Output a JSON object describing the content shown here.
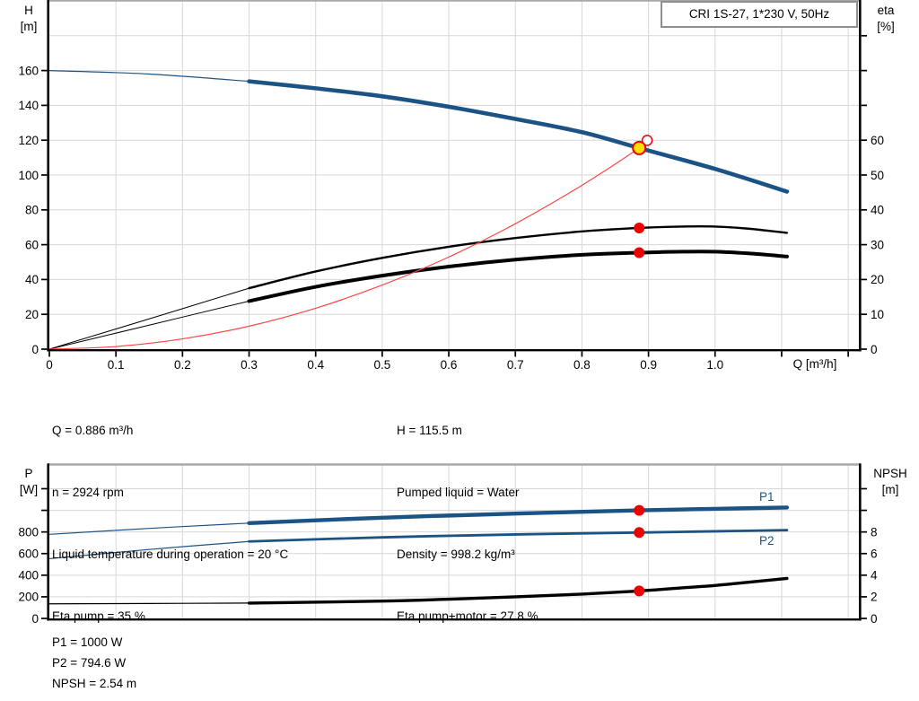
{
  "info": {
    "left": [
      "Q = 0.886 m³/h",
      "n = 2924 rpm",
      "Liquid temperature during operation = 20 °C",
      "Eta pump = 35 %"
    ],
    "right": [
      "H = 115.5 m",
      "Pumped liquid = Water",
      "Density = 998.2 kg/m³",
      "Eta pump+motor = 27.8 %"
    ]
  },
  "footer": [
    "P1 = 1000 W",
    "P2 = 794.6 W",
    "NPSH = 2.54 m"
  ],
  "operating_point": {
    "Q": 0.886,
    "H": 115.5,
    "eta_pump": 35,
    "eta_pump_motor": 27.8,
    "P1": 1000,
    "P2": 794.6,
    "NPSH": 2.54
  },
  "colors": {
    "curve_blue": "#1c5385",
    "curve_black": "#000000",
    "duty_red": "#ff4646",
    "dot_red": "#ee0000",
    "dot_yellow": "#ffe100",
    "grid": "#d7d7d7",
    "top_border": "#a8a8a8",
    "axis": "#000000"
  },
  "chart_data": [
    {
      "id": "qh-eta",
      "type": "line",
      "title_box": "CRI 1S-27, 1*230 V, 50Hz",
      "x_axis": {
        "label": "Q [m³/h]",
        "min": 0,
        "max": 1.216,
        "ticks": [
          0,
          0.1,
          0.2,
          0.3,
          0.4,
          0.5,
          0.6,
          0.7,
          0.8,
          0.9,
          1.0
        ],
        "tick_labels": [
          "0",
          "0.1",
          "0.2",
          "0.3",
          "0.4",
          "0.5",
          "0.6",
          "0.7",
          "0.8",
          "0.9",
          "1.0"
        ],
        "unlabeled_ticks": [
          1.1,
          1.2
        ],
        "grid": [
          0.1,
          0.2,
          0.3,
          0.4,
          0.5,
          0.6,
          0.7,
          0.8,
          0.9,
          1.0,
          1.1,
          1.2
        ]
      },
      "left_axis": {
        "label_line1": "H",
        "label_line2": "[m]",
        "min": 0,
        "max": 200,
        "ticks": [
          0,
          20,
          40,
          60,
          80,
          100,
          120,
          140,
          160
        ],
        "tick_labels": [
          "0",
          "20",
          "40",
          "60",
          "80",
          "100",
          "120",
          "140",
          "160"
        ],
        "unlabeled_ticks": [],
        "grid": [
          20,
          40,
          60,
          80,
          100,
          120,
          140,
          160,
          180
        ]
      },
      "right_axis": {
        "label_line1": "eta",
        "label_line2": "[%]",
        "min": 0,
        "max": 100,
        "ticks": [
          0,
          10,
          20,
          30,
          40,
          50,
          60
        ],
        "tick_labels": [
          "0",
          "10",
          "20",
          "30",
          "40",
          "50",
          "60"
        ],
        "unlabeled_ticks": [
          70,
          80,
          90
        ]
      },
      "series": [
        {
          "name": "eta-pump-curve",
          "axis": "right",
          "color": "#000000",
          "label": "",
          "segments": [
            {
              "width": 1,
              "points": [
                [
                  0,
                  0
                ],
                [
                  0.15,
                  8.7
                ],
                [
                  0.3,
                  17.5
                ]
              ]
            },
            {
              "width": 2.4,
              "points": [
                [
                  0.3,
                  17.5
                ],
                [
                  0.4,
                  22.3
                ],
                [
                  0.5,
                  26.2
                ],
                [
                  0.6,
                  29.4
                ],
                [
                  0.7,
                  31.9
                ],
                [
                  0.8,
                  33.8
                ],
                [
                  0.886,
                  34.8
                ],
                [
                  0.95,
                  35.2
                ],
                [
                  1.0,
                  35.2
                ],
                [
                  1.05,
                  34.6
                ],
                [
                  1.108,
                  33.4
                ]
              ]
            }
          ]
        },
        {
          "name": "eta-pump-motor-curve",
          "axis": "right",
          "color": "#000000",
          "label": "",
          "segments": [
            {
              "width": 1,
              "points": [
                [
                  0,
                  0
                ],
                [
                  0.15,
                  6.9
                ],
                [
                  0.3,
                  13.8
                ]
              ]
            },
            {
              "width": 4,
              "points": [
                [
                  0.3,
                  13.8
                ],
                [
                  0.4,
                  17.9
                ],
                [
                  0.5,
                  21.1
                ],
                [
                  0.6,
                  23.7
                ],
                [
                  0.7,
                  25.7
                ],
                [
                  0.8,
                  27.1
                ],
                [
                  0.886,
                  27.7
                ],
                [
                  0.95,
                  28.0
                ],
                [
                  1.0,
                  28.0
                ],
                [
                  1.05,
                  27.5
                ],
                [
                  1.108,
                  26.6
                ]
              ]
            }
          ]
        },
        {
          "name": "duty-line",
          "axis": "left",
          "color": "#ff4646",
          "label": "",
          "segments": [
            {
              "width": 1.2,
              "points": [
                [
                  0,
                  0
                ],
                [
                  0.1,
                  1.5
                ],
                [
                  0.2,
                  5.9
                ],
                [
                  0.3,
                  13.2
                ],
                [
                  0.4,
                  23.5
                ],
                [
                  0.5,
                  36.8
                ],
                [
                  0.6,
                  52.9
                ],
                [
                  0.7,
                  72.0
                ],
                [
                  0.8,
                  94.1
                ],
                [
                  0.886,
                  115.5
                ],
                [
                  0.898,
                  119.9
                ]
              ]
            }
          ]
        },
        {
          "name": "head-curve",
          "axis": "left",
          "color": "#1c5385",
          "label": "",
          "segments": [
            {
              "width": 1.2,
              "points": [
                [
                  0,
                  160
                ],
                [
                  0.15,
                  158
                ],
                [
                  0.3,
                  153.8
                ]
              ]
            },
            {
              "width": 4.6,
              "points": [
                [
                  0.3,
                  153.8
                ],
                [
                  0.4,
                  149.8
                ],
                [
                  0.5,
                  145.2
                ],
                [
                  0.6,
                  139.2
                ],
                [
                  0.7,
                  132.2
                ],
                [
                  0.8,
                  124.6
                ],
                [
                  0.886,
                  115.5
                ],
                [
                  1.0,
                  103.5
                ],
                [
                  1.108,
                  90.5
                ]
              ]
            }
          ]
        }
      ],
      "markers": [
        {
          "name": "eta-pump-point",
          "shape": "dot",
          "axis": "right",
          "q": 0.886,
          "value": 34.8,
          "r": 6,
          "fill": "#ee0000",
          "stroke": "none",
          "sw": 0
        },
        {
          "name": "eta-pump-motor-point",
          "shape": "dot",
          "axis": "right",
          "q": 0.886,
          "value": 27.7,
          "r": 6,
          "fill": "#ee0000",
          "stroke": "none",
          "sw": 0
        },
        {
          "name": "rated-point-open",
          "shape": "dot",
          "axis": "left",
          "q": 0.898,
          "value": 119.9,
          "r": 5.5,
          "fill": "#ffffff",
          "stroke": "#ee0000",
          "sw": 1.5
        },
        {
          "name": "duty-point",
          "shape": "dot",
          "axis": "left",
          "q": 0.886,
          "value": 115.5,
          "r": 7,
          "fill": "#ffe100",
          "stroke": "#ee0000",
          "sw": 2
        }
      ]
    },
    {
      "id": "power-npsh",
      "type": "line",
      "title_box": "",
      "x_axis": {
        "label": "",
        "min": 0,
        "max": 1.216,
        "ticks": [],
        "tick_labels": [],
        "unlabeled_ticks": [],
        "grid": [
          0.1,
          0.2,
          0.3,
          0.4,
          0.5,
          0.6,
          0.7,
          0.8,
          0.9,
          1.0,
          1.1,
          1.2
        ]
      },
      "left_axis": {
        "label_line1": "P",
        "label_line2": "[W]",
        "min": 0,
        "max": 1420,
        "ticks": [
          0,
          200,
          400,
          600,
          800
        ],
        "tick_labels": [
          "0",
          "200",
          "400",
          "600",
          "800"
        ],
        "unlabeled_ticks": [
          1000,
          1200
        ],
        "grid": [
          200,
          400,
          600,
          800,
          1000,
          1200
        ]
      },
      "right_axis": {
        "label_line1": "NPSH",
        "label_line2": "[m]",
        "min": 0,
        "max": 14.2,
        "ticks": [
          0,
          2,
          4,
          6,
          8
        ],
        "tick_labels": [
          "0",
          "2",
          "4",
          "6",
          "8"
        ],
        "unlabeled_ticks": [
          10,
          12
        ]
      },
      "series": [
        {
          "name": "p1-curve",
          "axis": "left",
          "color": "#1c5385",
          "label": "P1",
          "segments": [
            {
              "width": 1.2,
              "points": [
                [
                  0,
                  778
                ],
                [
                  0.15,
                  833
                ],
                [
                  0.3,
                  882
                ]
              ]
            },
            {
              "width": 4.4,
              "points": [
                [
                  0.3,
                  882
                ],
                [
                  0.5,
                  932
                ],
                [
                  0.7,
                  970
                ],
                [
                  0.886,
                  1000
                ],
                [
                  1.0,
                  1014
                ],
                [
                  1.108,
                  1026
                ]
              ]
            }
          ]
        },
        {
          "name": "p2-curve",
          "axis": "left",
          "color": "#1c5385",
          "label": "P2",
          "segments": [
            {
              "width": 1.2,
              "points": [
                [
                  0,
                  553
                ],
                [
                  0.15,
                  638
                ],
                [
                  0.3,
                  712
                ]
              ]
            },
            {
              "width": 2.8,
              "points": [
                [
                  0.3,
                  712
                ],
                [
                  0.5,
                  750
                ],
                [
                  0.7,
                  777
                ],
                [
                  0.886,
                  794.6
                ],
                [
                  1.0,
                  806
                ],
                [
                  1.108,
                  817
                ]
              ]
            }
          ]
        },
        {
          "name": "npsh-curve",
          "axis": "right",
          "color": "#000000",
          "label": "",
          "segments": [
            {
              "width": 1.2,
              "points": [
                [
                  0,
                  1.35
                ],
                [
                  0.15,
                  1.38
                ],
                [
                  0.3,
                  1.42
                ]
              ]
            },
            {
              "width": 3.4,
              "points": [
                [
                  0.3,
                  1.42
                ],
                [
                  0.5,
                  1.6
                ],
                [
                  0.6,
                  1.78
                ],
                [
                  0.7,
                  2.0
                ],
                [
                  0.8,
                  2.25
                ],
                [
                  0.886,
                  2.54
                ],
                [
                  0.95,
                  2.83
                ],
                [
                  1.0,
                  3.05
                ],
                [
                  1.05,
                  3.35
                ],
                [
                  1.108,
                  3.7
                ]
              ]
            }
          ]
        }
      ],
      "markers": [
        {
          "name": "p1-point",
          "shape": "dot",
          "axis": "left",
          "q": 0.886,
          "value": 1000,
          "r": 6,
          "fill": "#ee0000",
          "stroke": "none",
          "sw": 0
        },
        {
          "name": "p2-point",
          "shape": "dot",
          "axis": "left",
          "q": 0.886,
          "value": 794.6,
          "r": 6,
          "fill": "#ee0000",
          "stroke": "none",
          "sw": 0
        },
        {
          "name": "npsh-point",
          "shape": "dot",
          "axis": "right",
          "q": 0.886,
          "value": 2.54,
          "r": 6,
          "fill": "#ee0000",
          "stroke": "none",
          "sw": 0
        }
      ]
    }
  ]
}
